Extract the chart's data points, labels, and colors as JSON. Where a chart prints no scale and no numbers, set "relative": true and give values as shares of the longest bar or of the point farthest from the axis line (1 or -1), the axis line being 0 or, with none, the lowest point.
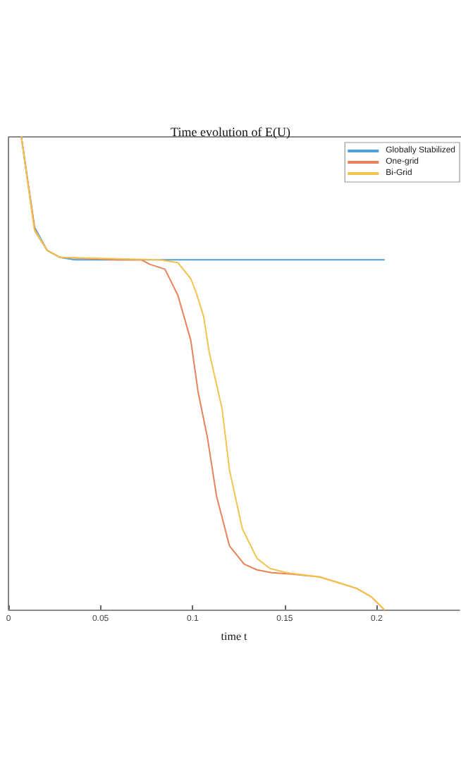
{
  "chart_data": {
    "type": "line",
    "title": "Time evolution of E(U)",
    "xlabel": "time t",
    "relative": true,
    "series": [
      {
        "name": "Globally Stabilized",
        "color": "#4f9fd8",
        "x": [
          0.007,
          0.014,
          0.021,
          0.028,
          0.036,
          0.204
        ],
        "values": [
          1,
          0.81,
          0.76,
          0.745,
          0.74,
          0.74
        ]
      },
      {
        "name": "One-grid",
        "color": "#e8825a",
        "x": [
          0.007,
          0.0145,
          0.021,
          0.028,
          0.059,
          0.072,
          0.077,
          0.085,
          0.092,
          0.099,
          0.103,
          0.108,
          0.113,
          0.12,
          0.128,
          0.135,
          0.143,
          0.154,
          0.169,
          0.179,
          0.189,
          0.197,
          0.204
        ],
        "values": [
          1,
          0.8,
          0.76,
          0.745,
          0.74,
          0.74,
          0.73,
          0.72,
          0.665,
          0.57,
          0.46,
          0.365,
          0.24,
          0.135,
          0.096,
          0.084,
          0.078,
          0.075,
          0.069,
          0.057,
          0.045,
          0.027,
          0
        ]
      },
      {
        "name": "Bi-Grid",
        "color": "#f2c44f",
        "x": [
          0.007,
          0.014,
          0.021,
          0.028,
          0.082,
          0.092,
          0.099,
          0.102,
          0.106,
          0.109,
          0.116,
          0.12,
          0.127,
          0.135,
          0.142,
          0.151,
          0.169,
          0.179,
          0.189,
          0.197,
          0.204
        ],
        "values": [
          1,
          0.805,
          0.76,
          0.745,
          0.74,
          0.734,
          0.7,
          0.67,
          0.62,
          0.545,
          0.425,
          0.296,
          0.171,
          0.108,
          0.087,
          0.078,
          0.069,
          0.057,
          0.045,
          0.027,
          0
        ]
      }
    ],
    "xlim": [
      0,
      0.245
    ],
    "xticks": [
      0,
      0.05,
      0.1,
      0.15,
      0.2
    ],
    "grid": false,
    "legend": "top right",
    "marker": "none",
    "line_style": "solid"
  }
}
